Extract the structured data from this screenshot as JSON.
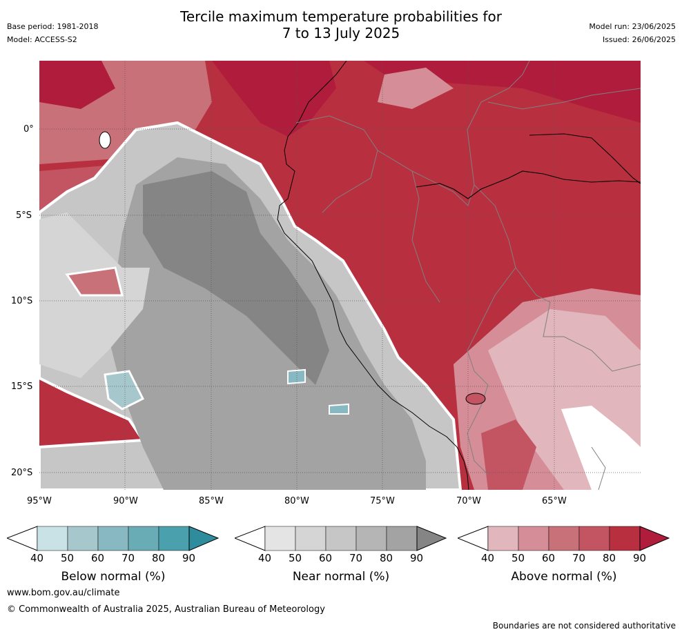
{
  "title": {
    "line1": "Tercile maximum temperature probabilities for",
    "line2": "7 to 13 July 2025"
  },
  "meta_left": {
    "base_period": "Base period: 1981-2018",
    "model": "Model: ACCESS-S2"
  },
  "meta_right": {
    "model_run": "Model run: 23/06/2025",
    "issued": "Issued: 26/06/2025"
  },
  "axes": {
    "lat_labels": [
      "0°",
      "5°S",
      "10°S",
      "15°S",
      "20°S"
    ],
    "lon_labels": [
      "95°W",
      "90°W",
      "85°W",
      "80°W",
      "75°W",
      "70°W",
      "65°W"
    ]
  },
  "legends": [
    {
      "label": "Below normal (%)",
      "ticks": [
        "40",
        "50",
        "60",
        "70",
        "80",
        "90"
      ],
      "colors": [
        "#c9e2e6",
        "#a6c8cd",
        "#88b8c1",
        "#6aacb6",
        "#4aa0ac",
        "#2f8c9c"
      ]
    },
    {
      "label": "Near normal (%)",
      "ticks": [
        "40",
        "50",
        "60",
        "70",
        "80",
        "90"
      ],
      "colors": [
        "#e4e4e4",
        "#d5d5d5",
        "#c6c6c6",
        "#b5b5b5",
        "#a3a3a3",
        "#858585"
      ]
    },
    {
      "label": "Above normal (%)",
      "ticks": [
        "40",
        "50",
        "60",
        "70",
        "80",
        "90"
      ],
      "colors": [
        "#e2b6bd",
        "#d58e98",
        "#c97179",
        "#c35563",
        "#b8303f",
        "#b01c3c"
      ]
    }
  ],
  "footer": {
    "website": "www.bom.gov.au/climate",
    "copyright": "© Commonwealth of Australia 2025, Australian Bureau of Meteorology",
    "disclaimer": "Boundaries are not considered authoritative"
  }
}
